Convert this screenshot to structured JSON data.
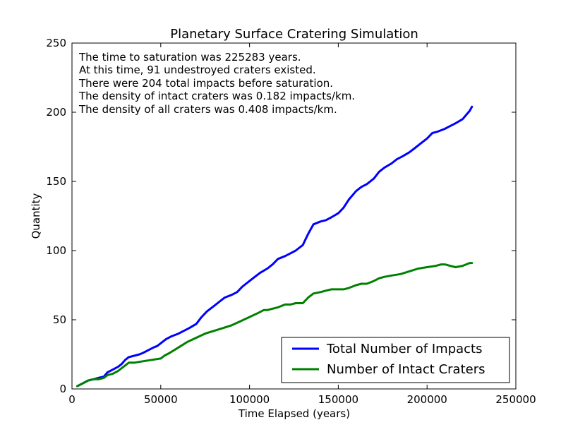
{
  "chart_data": {
    "type": "line",
    "title": "Planetary Surface Cratering Simulation",
    "xlabel": "Time Elapsed (years)",
    "ylabel": "Quantity",
    "xlim": [
      0,
      250000
    ],
    "ylim": [
      0,
      250
    ],
    "xticks": [
      0,
      50000,
      100000,
      150000,
      200000,
      250000
    ],
    "xtick_labels": [
      "0",
      "50000",
      "100000",
      "150000",
      "200000",
      "250000"
    ],
    "yticks": [
      0,
      50,
      100,
      150,
      200,
      250
    ],
    "ytick_labels": [
      "0",
      "50",
      "100",
      "150",
      "200",
      "250"
    ],
    "grid": false,
    "legend_position": "lower-right",
    "annotations": [
      "The time to saturation was 225283 years.",
      "At this time, 91 undestroyed craters existed.",
      "There were 204 total impacts before saturation.",
      "The density of intact craters was 0.182 impacts/km.",
      "The density of all craters was 0.408 impacts/km."
    ],
    "series": [
      {
        "name": "Total Number of Impacts",
        "color": "#0000ff",
        "x": [
          3000,
          6000,
          9000,
          12000,
          15000,
          18000,
          20000,
          23000,
          26000,
          28000,
          30000,
          32000,
          35000,
          38000,
          40000,
          43000,
          46000,
          48000,
          50000,
          53000,
          56000,
          60000,
          63000,
          66000,
          70000,
          73000,
          76000,
          80000,
          83000,
          86000,
          90000,
          93000,
          96000,
          100000,
          103000,
          106000,
          110000,
          113000,
          116000,
          120000,
          123000,
          126000,
          130000,
          133000,
          136000,
          140000,
          143000,
          146000,
          150000,
          153000,
          156000,
          160000,
          163000,
          166000,
          170000,
          173000,
          176000,
          180000,
          183000,
          186000,
          190000,
          193000,
          196000,
          200000,
          203000,
          206000,
          210000,
          213000,
          216000,
          220000,
          222000,
          224000,
          225283
        ],
        "y": [
          2,
          4,
          6,
          7,
          8,
          9,
          12,
          14,
          16,
          18,
          21,
          23,
          24,
          25,
          26,
          28,
          30,
          31,
          33,
          36,
          38,
          40,
          42,
          44,
          47,
          52,
          56,
          60,
          63,
          66,
          68,
          70,
          74,
          78,
          81,
          84,
          87,
          90,
          94,
          96,
          98,
          100,
          104,
          112,
          119,
          121,
          122,
          124,
          127,
          131,
          137,
          143,
          146,
          148,
          152,
          157,
          160,
          163,
          166,
          168,
          171,
          174,
          177,
          181,
          185,
          186,
          188,
          190,
          192,
          195,
          198,
          201,
          204
        ]
      },
      {
        "name": "Number of Intact Craters",
        "color": "#008000",
        "x": [
          3000,
          6000,
          9000,
          12000,
          15000,
          18000,
          20000,
          23000,
          26000,
          28000,
          30000,
          32000,
          35000,
          40000,
          45000,
          50000,
          52000,
          55000,
          60000,
          65000,
          70000,
          75000,
          80000,
          85000,
          90000,
          95000,
          100000,
          105000,
          108000,
          110000,
          113000,
          116000,
          120000,
          123000,
          126000,
          130000,
          133000,
          136000,
          140000,
          143000,
          146000,
          150000,
          153000,
          156000,
          160000,
          163000,
          166000,
          170000,
          173000,
          176000,
          180000,
          185000,
          190000,
          195000,
          200000,
          205000,
          208000,
          210000,
          213000,
          216000,
          220000,
          222000,
          224000,
          225283
        ],
        "y": [
          2,
          4,
          6,
          7,
          7,
          8,
          10,
          11,
          13,
          15,
          17,
          19,
          19,
          20,
          21,
          22,
          24,
          26,
          30,
          34,
          37,
          40,
          42,
          44,
          46,
          49,
          52,
          55,
          57,
          57,
          58,
          59,
          61,
          61,
          62,
          62,
          66,
          69,
          70,
          71,
          72,
          72,
          72,
          73,
          75,
          76,
          76,
          78,
          80,
          81,
          82,
          83,
          85,
          87,
          88,
          89,
          90,
          90,
          89,
          88,
          89,
          90,
          91,
          91
        ]
      }
    ]
  }
}
